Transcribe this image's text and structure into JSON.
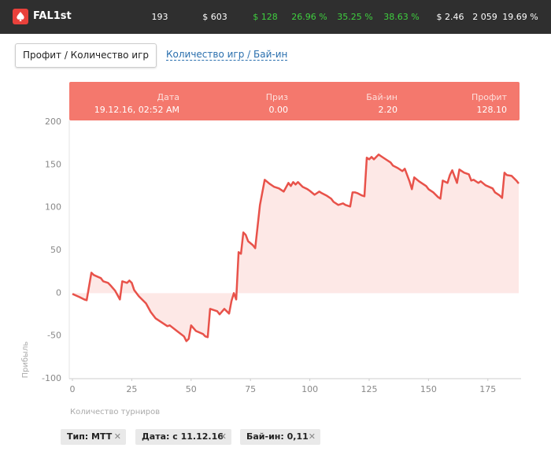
{
  "header": {
    "logo": "FAL1st",
    "stats": [
      "193",
      "$ 603",
      "$ 128",
      "26.96 %",
      "35.25 %",
      "38.63 %",
      "$ 2.46",
      "2 059",
      "19.69 %"
    ]
  },
  "tabs": [
    "Профит / Количество игр",
    "Количество игр / Бай-ин"
  ],
  "tooltip": {
    "labels": [
      "Дата",
      "Приз",
      "Бай-ин",
      "Профит"
    ],
    "values": [
      "19.12.16, 02:52 AM",
      "0.00",
      "2.20",
      "128.10"
    ]
  },
  "filters": [
    "Тип: MTT",
    "Дата: с 11.12.16",
    "Бай-ин: 0,11"
  ],
  "chart_data": {
    "type": "area",
    "x_label": "Количество турниров",
    "y_label": "Прибыль",
    "series": [
      {
        "name": null,
        "color": "#e8524a",
        "fill": "#fde8e6",
        "x": [
          0,
          3,
          5,
          6,
          8,
          9,
          12,
          13,
          15,
          16,
          18,
          20,
          21,
          23,
          24,
          25,
          26,
          28,
          31,
          33,
          35,
          37,
          40,
          41,
          44,
          47,
          48,
          49,
          50,
          52,
          55,
          56,
          57,
          58,
          61,
          62,
          64,
          66,
          67,
          68,
          69,
          70,
          71,
          72,
          73,
          74,
          76,
          77,
          79,
          81,
          83,
          85,
          87,
          89,
          91,
          92,
          93,
          94,
          95,
          97,
          99,
          100,
          102,
          104,
          105,
          107,
          109,
          110,
          112,
          114,
          115,
          117,
          118,
          119,
          120,
          122,
          123,
          124,
          125,
          126,
          127,
          129,
          130,
          132,
          134,
          135,
          137,
          139,
          140,
          142,
          143,
          144,
          146,
          149,
          150,
          152,
          154,
          155,
          156,
          158,
          159,
          160,
          162,
          163,
          165,
          167,
          168,
          169,
          171,
          172,
          174,
          177,
          178,
          180,
          181,
          182,
          183,
          185,
          187,
          188
        ],
        "values": [
          -0.9,
          -4.6,
          -7.4,
          -8.3,
          23.9,
          21.2,
          17.5,
          13.8,
          12,
          9.2,
          2.8,
          -7.4,
          13.8,
          12,
          14.7,
          12,
          3.7,
          -3.7,
          -12,
          -22.1,
          -29.4,
          -33.1,
          -38.6,
          -37.7,
          -44.2,
          -50.6,
          -56.1,
          -53.4,
          -37.7,
          -44.2,
          -47.8,
          -50.6,
          -51.5,
          -18.4,
          -21.2,
          -24.8,
          -18.4,
          -23.9,
          -9.2,
          0,
          -7.4,
          47.9,
          46,
          70.9,
          68.1,
          60.7,
          56.1,
          52.5,
          103.1,
          132.5,
          127.9,
          124.2,
          122.4,
          118.7,
          128.8,
          125.2,
          129.8,
          127,
          129.8,
          124.2,
          121.5,
          119.6,
          115,
          118.7,
          116.9,
          114.1,
          110.4,
          106.7,
          103.1,
          104.9,
          103.1,
          101.2,
          117.8,
          117.8,
          116.9,
          114.1,
          113.2,
          158.3,
          156.4,
          159.2,
          156.4,
          162,
          160.1,
          156.4,
          152.8,
          149.1,
          146.3,
          142.6,
          145.4,
          130.7,
          121.5,
          135.3,
          130.7,
          125.2,
          121.5,
          117.8,
          112.3,
          110.4,
          131.6,
          128.8,
          138,
          143.6,
          128.8,
          144.5,
          140.8,
          138.9,
          131.6,
          132.5,
          128.8,
          130.7,
          126.1,
          122.4,
          117.8,
          114.1,
          111.3,
          140.8,
          138,
          137.1,
          131.6,
          128.1
        ]
      }
    ],
    "xlim": [
      0,
      189
    ],
    "xticks": [
      0,
      25,
      50,
      75,
      100,
      125,
      150,
      175
    ],
    "ylim": [
      -100,
      200
    ],
    "yticks": [
      -100,
      -50,
      0,
      50,
      100,
      150,
      200
    ],
    "grid": false
  }
}
